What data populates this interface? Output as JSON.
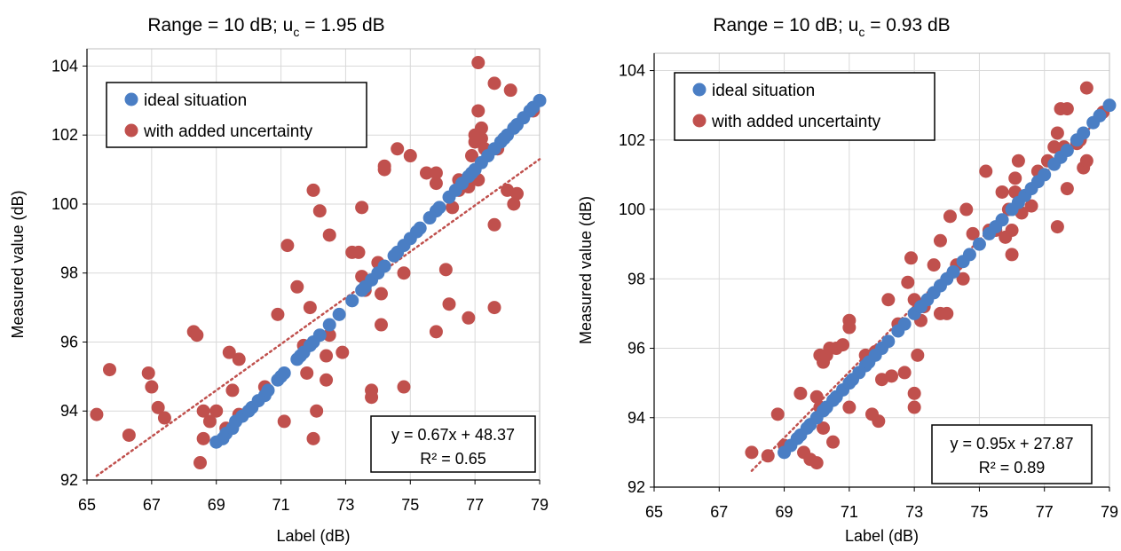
{
  "colors": {
    "ideal": "#4a7ec4",
    "noisy": "#c0504d",
    "trend": "#c0504d",
    "grid": "#d9d9d9",
    "axis": "#000000"
  },
  "chart_data": [
    {
      "type": "scatter",
      "title": "Range = 10 dB; u",
      "title_sub": "c",
      "title_tail": " = 1.95 dB",
      "xlabel": "Label (dB)",
      "ylabel": "Measured value (dB)",
      "xlim": [
        65,
        79
      ],
      "ylim": [
        92,
        104.5
      ],
      "xticks": [
        65,
        67,
        69,
        71,
        73,
        75,
        77,
        79
      ],
      "yticks": [
        92,
        94,
        96,
        98,
        100,
        102,
        104
      ],
      "grid": true,
      "legend_position": "top-left",
      "equation": "y = 0.67x + 48.37",
      "r2": "R² = 0.65",
      "trendline": {
        "slope": 0.67,
        "intercept": 48.37,
        "x": [
          65.3,
          79
        ]
      },
      "series": [
        {
          "name": "ideal situation",
          "points": [
            [
              69.0,
              93.1
            ],
            [
              69.2,
              93.2
            ],
            [
              69.3,
              93.35
            ],
            [
              69.5,
              93.5
            ],
            [
              69.6,
              93.7
            ],
            [
              69.8,
              93.85
            ],
            [
              70.0,
              94.0
            ],
            [
              70.1,
              94.1
            ],
            [
              70.3,
              94.3
            ],
            [
              70.5,
              94.45
            ],
            [
              70.6,
              94.6
            ],
            [
              70.9,
              94.9
            ],
            [
              71.0,
              95.0
            ],
            [
              71.1,
              95.1
            ],
            [
              71.5,
              95.5
            ],
            [
              71.6,
              95.6
            ],
            [
              71.7,
              95.7
            ],
            [
              71.9,
              95.9
            ],
            [
              72.0,
              96.0
            ],
            [
              72.2,
              96.2
            ],
            [
              72.5,
              96.5
            ],
            [
              72.8,
              96.8
            ],
            [
              73.2,
              97.2
            ],
            [
              73.5,
              97.5
            ],
            [
              73.6,
              97.6
            ],
            [
              73.8,
              97.8
            ],
            [
              74.0,
              98.0
            ],
            [
              74.2,
              98.2
            ],
            [
              74.5,
              98.5
            ],
            [
              74.6,
              98.6
            ],
            [
              74.8,
              98.8
            ],
            [
              75.0,
              99.0
            ],
            [
              75.2,
              99.2
            ],
            [
              75.3,
              99.3
            ],
            [
              75.6,
              99.6
            ],
            [
              75.8,
              99.8
            ],
            [
              75.9,
              99.9
            ],
            [
              76.2,
              100.2
            ],
            [
              76.4,
              100.4
            ],
            [
              76.6,
              100.6
            ],
            [
              76.8,
              100.8
            ],
            [
              76.9,
              100.9
            ],
            [
              77.0,
              101.0
            ],
            [
              77.2,
              101.2
            ],
            [
              77.4,
              101.4
            ],
            [
              77.6,
              101.6
            ],
            [
              77.8,
              101.8
            ],
            [
              77.9,
              101.9
            ],
            [
              78.0,
              102.0
            ],
            [
              78.2,
              102.2
            ],
            [
              78.3,
              102.3
            ],
            [
              78.5,
              102.5
            ],
            [
              78.7,
              102.7
            ],
            [
              78.8,
              102.8
            ],
            [
              79.0,
              103.0
            ]
          ]
        },
        {
          "name": "with added uncertainty",
          "points": [
            [
              65.3,
              93.9
            ],
            [
              65.7,
              95.2
            ],
            [
              66.3,
              93.3
            ],
            [
              66.9,
              95.1
            ],
            [
              67.0,
              94.7
            ],
            [
              67.2,
              94.1
            ],
            [
              67.4,
              93.8
            ],
            [
              68.3,
              96.3
            ],
            [
              68.4,
              96.2
            ],
            [
              68.5,
              92.5
            ],
            [
              68.6,
              93.2
            ],
            [
              68.6,
              94.0
            ],
            [
              68.8,
              93.7
            ],
            [
              69.0,
              94.0
            ],
            [
              69.3,
              93.5
            ],
            [
              69.4,
              95.7
            ],
            [
              69.5,
              94.6
            ],
            [
              69.7,
              93.9
            ],
            [
              69.7,
              95.5
            ],
            [
              70.5,
              94.7
            ],
            [
              70.9,
              96.8
            ],
            [
              71.1,
              93.7
            ],
            [
              71.2,
              98.8
            ],
            [
              71.5,
              97.6
            ],
            [
              71.7,
              95.9
            ],
            [
              71.8,
              95.1
            ],
            [
              71.9,
              97.0
            ],
            [
              72.0,
              100.4
            ],
            [
              72.0,
              93.2
            ],
            [
              72.1,
              94.0
            ],
            [
              72.2,
              99.8
            ],
            [
              72.4,
              95.6
            ],
            [
              72.4,
              94.9
            ],
            [
              72.5,
              99.1
            ],
            [
              72.5,
              96.2
            ],
            [
              72.9,
              95.7
            ],
            [
              73.2,
              98.6
            ],
            [
              73.4,
              98.6
            ],
            [
              73.5,
              99.9
            ],
            [
              73.5,
              97.9
            ],
            [
              73.6,
              97.5
            ],
            [
              73.8,
              94.6
            ],
            [
              73.8,
              94.4
            ],
            [
              74.0,
              98.3
            ],
            [
              74.1,
              96.5
            ],
            [
              74.1,
              97.4
            ],
            [
              74.2,
              101.0
            ],
            [
              74.2,
              101.1
            ],
            [
              74.6,
              101.6
            ],
            [
              74.8,
              98.0
            ],
            [
              74.8,
              94.7
            ],
            [
              75.0,
              101.4
            ],
            [
              75.5,
              100.9
            ],
            [
              75.8,
              100.6
            ],
            [
              75.8,
              100.9
            ],
            [
              75.8,
              96.3
            ],
            [
              76.1,
              98.1
            ],
            [
              76.2,
              97.1
            ],
            [
              76.3,
              99.9
            ],
            [
              76.5,
              100.4
            ],
            [
              76.5,
              100.7
            ],
            [
              76.8,
              100.5
            ],
            [
              76.8,
              96.7
            ],
            [
              76.9,
              101.4
            ],
            [
              77.0,
              101.8
            ],
            [
              77.1,
              100.7
            ],
            [
              77.2,
              101.9
            ],
            [
              77.3,
              101.6
            ],
            [
              77.0,
              102.0
            ],
            [
              77.2,
              102.2
            ],
            [
              77.1,
              102.7
            ],
            [
              77.1,
              104.1
            ],
            [
              77.6,
              103.5
            ],
            [
              77.6,
              97.0
            ],
            [
              77.6,
              99.4
            ],
            [
              77.7,
              101.6
            ],
            [
              78.0,
              100.4
            ],
            [
              78.1,
              103.3
            ],
            [
              78.2,
              100.0
            ],
            [
              78.3,
              100.3
            ],
            [
              78.8,
              102.7
            ]
          ]
        }
      ]
    },
    {
      "type": "scatter",
      "title": "Range = 10 dB; u",
      "title_sub": "c",
      "title_tail": " = 0.93 dB",
      "xlabel": "Label (dB)",
      "ylabel": "Measured value (dB)",
      "xlim": [
        65,
        79
      ],
      "ylim": [
        92,
        104.5
      ],
      "xticks": [
        65,
        67,
        69,
        71,
        73,
        75,
        77,
        79
      ],
      "yticks": [
        92,
        94,
        96,
        98,
        100,
        102,
        104
      ],
      "grid": true,
      "legend_position": "top-left",
      "equation": "y = 0.95x + 27.87",
      "r2": "R² = 0.89",
      "trendline": {
        "slope": 0.95,
        "intercept": 27.87,
        "x": [
          68.0,
          79
        ]
      },
      "series": [
        {
          "name": "ideal situation",
          "points": [
            [
              69.0,
              93.0
            ],
            [
              69.2,
              93.2
            ],
            [
              69.4,
              93.4
            ],
            [
              69.5,
              93.5
            ],
            [
              69.7,
              93.7
            ],
            [
              69.8,
              93.8
            ],
            [
              70.0,
              94.0
            ],
            [
              70.2,
              94.2
            ],
            [
              70.3,
              94.3
            ],
            [
              70.5,
              94.5
            ],
            [
              70.6,
              94.6
            ],
            [
              70.8,
              94.8
            ],
            [
              71.0,
              95.0
            ],
            [
              71.1,
              95.1
            ],
            [
              71.3,
              95.3
            ],
            [
              71.5,
              95.5
            ],
            [
              71.6,
              95.6
            ],
            [
              71.8,
              95.8
            ],
            [
              72.0,
              96.0
            ],
            [
              72.2,
              96.2
            ],
            [
              72.5,
              96.5
            ],
            [
              72.7,
              96.7
            ],
            [
              73.0,
              97.0
            ],
            [
              73.2,
              97.2
            ],
            [
              73.4,
              97.4
            ],
            [
              73.6,
              97.6
            ],
            [
              73.8,
              97.8
            ],
            [
              74.0,
              98.0
            ],
            [
              74.2,
              98.2
            ],
            [
              74.5,
              98.5
            ],
            [
              74.7,
              98.7
            ],
            [
              75.0,
              99.0
            ],
            [
              75.3,
              99.3
            ],
            [
              75.5,
              99.5
            ],
            [
              75.7,
              99.7
            ],
            [
              76.0,
              100.0
            ],
            [
              76.2,
              100.2
            ],
            [
              76.4,
              100.4
            ],
            [
              76.6,
              100.6
            ],
            [
              76.8,
              100.8
            ],
            [
              77.0,
              101.0
            ],
            [
              77.3,
              101.3
            ],
            [
              77.5,
              101.5
            ],
            [
              77.7,
              101.7
            ],
            [
              78.0,
              102.0
            ],
            [
              78.2,
              102.2
            ],
            [
              78.5,
              102.5
            ],
            [
              78.7,
              102.7
            ],
            [
              79.0,
              103.0
            ]
          ]
        },
        {
          "name": "with added uncertainty",
          "points": [
            [
              68.0,
              93.0
            ],
            [
              68.5,
              92.9
            ],
            [
              68.8,
              94.1
            ],
            [
              69.0,
              93.2
            ],
            [
              69.5,
              94.7
            ],
            [
              69.6,
              93.0
            ],
            [
              69.8,
              92.8
            ],
            [
              70.0,
              92.7
            ],
            [
              70.0,
              94.6
            ],
            [
              70.1,
              95.8
            ],
            [
              70.1,
              94.3
            ],
            [
              70.2,
              95.6
            ],
            [
              70.2,
              93.7
            ],
            [
              70.3,
              95.8
            ],
            [
              70.4,
              96.0
            ],
            [
              70.5,
              93.3
            ],
            [
              70.6,
              96.0
            ],
            [
              70.8,
              96.1
            ],
            [
              71.0,
              96.8
            ],
            [
              71.0,
              96.6
            ],
            [
              71.0,
              94.3
            ],
            [
              71.5,
              95.8
            ],
            [
              71.7,
              94.1
            ],
            [
              71.8,
              95.9
            ],
            [
              71.9,
              93.9
            ],
            [
              72.0,
              95.1
            ],
            [
              72.2,
              97.4
            ],
            [
              72.3,
              95.2
            ],
            [
              72.5,
              96.7
            ],
            [
              72.7,
              95.3
            ],
            [
              72.8,
              97.9
            ],
            [
              72.9,
              98.6
            ],
            [
              73.0,
              97.4
            ],
            [
              73.0,
              94.7
            ],
            [
              73.0,
              94.3
            ],
            [
              73.1,
              95.8
            ],
            [
              73.2,
              96.8
            ],
            [
              73.3,
              97.2
            ],
            [
              73.6,
              98.4
            ],
            [
              73.8,
              99.1
            ],
            [
              73.8,
              97.0
            ],
            [
              74.0,
              97.0
            ],
            [
              74.1,
              99.8
            ],
            [
              74.3,
              98.4
            ],
            [
              74.5,
              98.0
            ],
            [
              74.6,
              100.0
            ],
            [
              74.8,
              99.3
            ],
            [
              75.2,
              101.1
            ],
            [
              75.3,
              99.4
            ],
            [
              75.5,
              99.4
            ],
            [
              75.7,
              100.5
            ],
            [
              75.8,
              99.2
            ],
            [
              75.9,
              100.0
            ],
            [
              76.0,
              99.4
            ],
            [
              76.0,
              98.7
            ],
            [
              76.1,
              100.9
            ],
            [
              76.1,
              100.5
            ],
            [
              76.3,
              99.9
            ],
            [
              76.2,
              101.4
            ],
            [
              76.6,
              100.1
            ],
            [
              76.8,
              101.1
            ],
            [
              77.1,
              101.4
            ],
            [
              77.3,
              101.8
            ],
            [
              77.4,
              102.2
            ],
            [
              77.4,
              99.5
            ],
            [
              77.5,
              102.9
            ],
            [
              77.6,
              101.8
            ],
            [
              77.7,
              102.9
            ],
            [
              77.7,
              100.6
            ],
            [
              78.0,
              101.9
            ],
            [
              78.1,
              102.0
            ],
            [
              78.2,
              101.2
            ],
            [
              78.3,
              101.4
            ],
            [
              78.3,
              103.5
            ],
            [
              78.8,
              102.8
            ]
          ]
        }
      ]
    }
  ]
}
